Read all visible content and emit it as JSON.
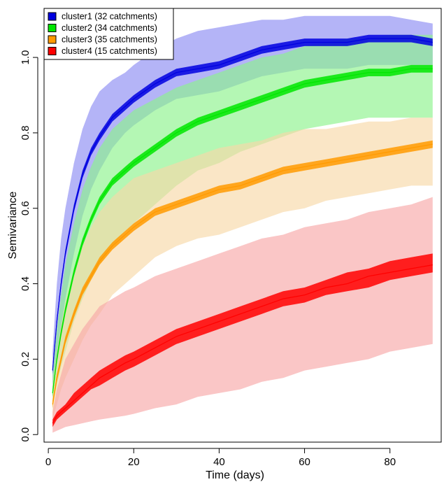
{
  "chart_data": {
    "type": "area",
    "xlabel": "Time (days)",
    "ylabel": "Semivariance",
    "xlim": [
      -1,
      92
    ],
    "ylim": [
      -0.02,
      1.13
    ],
    "x_ticks": [
      0,
      20,
      40,
      60,
      80
    ],
    "y_ticks": [
      0.0,
      0.2,
      0.4,
      0.6,
      0.8,
      1.0
    ],
    "y_tick_labels": [
      "0.0",
      "0.2",
      "0.4",
      "0.6",
      "0.8",
      "1.0"
    ],
    "grid": false,
    "legend_position": "top-left",
    "x": [
      1,
      2,
      3,
      4,
      6,
      8,
      10,
      12,
      15,
      18,
      20,
      25,
      30,
      35,
      40,
      45,
      50,
      55,
      60,
      65,
      70,
      75,
      80,
      85,
      90
    ],
    "series": [
      {
        "name": "cluster1 (32 catchments)",
        "color": "#0000e0",
        "band_color": "#8c8cf2",
        "mean": [
          0.17,
          0.3,
          0.4,
          0.48,
          0.6,
          0.69,
          0.75,
          0.79,
          0.84,
          0.87,
          0.89,
          0.93,
          0.96,
          0.97,
          0.98,
          1.0,
          1.02,
          1.03,
          1.04,
          1.04,
          1.04,
          1.05,
          1.05,
          1.05,
          1.04
        ],
        "mean_lower": [
          0.16,
          0.29,
          0.39,
          0.47,
          0.59,
          0.68,
          0.74,
          0.78,
          0.83,
          0.86,
          0.88,
          0.92,
          0.95,
          0.96,
          0.97,
          0.99,
          1.01,
          1.02,
          1.03,
          1.03,
          1.03,
          1.04,
          1.04,
          1.04,
          1.03
        ],
        "mean_upper": [
          0.18,
          0.31,
          0.41,
          0.49,
          0.61,
          0.7,
          0.76,
          0.8,
          0.85,
          0.88,
          0.9,
          0.94,
          0.97,
          0.98,
          0.99,
          1.01,
          1.03,
          1.04,
          1.05,
          1.05,
          1.05,
          1.06,
          1.06,
          1.06,
          1.05
        ],
        "lower": [
          0.12,
          0.2,
          0.28,
          0.36,
          0.48,
          0.58,
          0.65,
          0.7,
          0.76,
          0.8,
          0.82,
          0.86,
          0.89,
          0.9,
          0.91,
          0.93,
          0.95,
          0.96,
          0.97,
          0.97,
          0.97,
          0.98,
          0.98,
          0.98,
          0.98
        ],
        "upper": [
          0.22,
          0.4,
          0.52,
          0.6,
          0.72,
          0.81,
          0.87,
          0.91,
          0.94,
          0.96,
          0.98,
          1.02,
          1.05,
          1.07,
          1.08,
          1.09,
          1.1,
          1.1,
          1.11,
          1.11,
          1.11,
          1.11,
          1.11,
          1.1,
          1.09
        ]
      },
      {
        "name": "cluster2 (34 catchments)",
        "color": "#00e600",
        "band_color": "#8cf28c",
        "mean": [
          0.11,
          0.2,
          0.27,
          0.33,
          0.43,
          0.51,
          0.57,
          0.62,
          0.67,
          0.7,
          0.72,
          0.76,
          0.8,
          0.83,
          0.85,
          0.87,
          0.89,
          0.91,
          0.93,
          0.94,
          0.95,
          0.96,
          0.96,
          0.97,
          0.97
        ],
        "mean_lower": [
          0.1,
          0.19,
          0.26,
          0.32,
          0.42,
          0.5,
          0.56,
          0.61,
          0.66,
          0.69,
          0.71,
          0.75,
          0.79,
          0.82,
          0.84,
          0.86,
          0.88,
          0.9,
          0.92,
          0.93,
          0.94,
          0.95,
          0.95,
          0.96,
          0.96
        ],
        "mean_upper": [
          0.12,
          0.21,
          0.28,
          0.34,
          0.44,
          0.52,
          0.58,
          0.63,
          0.68,
          0.71,
          0.73,
          0.77,
          0.81,
          0.84,
          0.86,
          0.88,
          0.9,
          0.92,
          0.94,
          0.95,
          0.96,
          0.97,
          0.97,
          0.98,
          0.98
        ],
        "lower": [
          0.08,
          0.13,
          0.18,
          0.22,
          0.3,
          0.36,
          0.41,
          0.45,
          0.5,
          0.54,
          0.56,
          0.61,
          0.66,
          0.7,
          0.72,
          0.75,
          0.77,
          0.79,
          0.81,
          0.82,
          0.83,
          0.84,
          0.84,
          0.84,
          0.84
        ],
        "upper": [
          0.16,
          0.28,
          0.37,
          0.45,
          0.56,
          0.65,
          0.71,
          0.76,
          0.81,
          0.84,
          0.86,
          0.89,
          0.92,
          0.94,
          0.96,
          0.98,
          1.0,
          1.01,
          1.03,
          1.04,
          1.05,
          1.05,
          1.06,
          1.06,
          1.06
        ]
      },
      {
        "name": "cluster3 (35 catchments)",
        "color": "#ff9a00",
        "band_color": "#f7d9a8",
        "mean": [
          0.08,
          0.15,
          0.2,
          0.25,
          0.32,
          0.38,
          0.42,
          0.46,
          0.5,
          0.53,
          0.55,
          0.59,
          0.61,
          0.63,
          0.65,
          0.66,
          0.68,
          0.7,
          0.71,
          0.72,
          0.73,
          0.74,
          0.75,
          0.76,
          0.77
        ],
        "mean_lower": [
          0.07,
          0.14,
          0.19,
          0.24,
          0.31,
          0.37,
          0.41,
          0.45,
          0.49,
          0.52,
          0.54,
          0.58,
          0.6,
          0.62,
          0.64,
          0.65,
          0.67,
          0.69,
          0.7,
          0.71,
          0.72,
          0.73,
          0.74,
          0.75,
          0.76
        ],
        "mean_upper": [
          0.09,
          0.16,
          0.21,
          0.26,
          0.33,
          0.39,
          0.43,
          0.47,
          0.51,
          0.54,
          0.56,
          0.6,
          0.62,
          0.64,
          0.66,
          0.67,
          0.69,
          0.71,
          0.72,
          0.73,
          0.74,
          0.75,
          0.76,
          0.77,
          0.78
        ],
        "lower": [
          0.04,
          0.08,
          0.12,
          0.15,
          0.2,
          0.25,
          0.29,
          0.32,
          0.37,
          0.4,
          0.42,
          0.47,
          0.5,
          0.52,
          0.53,
          0.55,
          0.57,
          0.59,
          0.6,
          0.62,
          0.63,
          0.64,
          0.65,
          0.66,
          0.66
        ],
        "upper": [
          0.13,
          0.22,
          0.29,
          0.35,
          0.44,
          0.5,
          0.55,
          0.59,
          0.63,
          0.66,
          0.68,
          0.7,
          0.72,
          0.74,
          0.76,
          0.77,
          0.78,
          0.8,
          0.81,
          0.81,
          0.82,
          0.83,
          0.83,
          0.84,
          0.84
        ]
      },
      {
        "name": "cluster4 (15 catchments)",
        "color": "#ff0000",
        "band_color": "#f7a8a8",
        "mean": [
          0.03,
          0.05,
          0.06,
          0.07,
          0.09,
          0.11,
          0.13,
          0.15,
          0.17,
          0.19,
          0.2,
          0.23,
          0.26,
          0.28,
          0.3,
          0.32,
          0.34,
          0.36,
          0.37,
          0.39,
          0.4,
          0.42,
          0.43,
          0.44,
          0.45
        ],
        "mean_lower": [
          0.02,
          0.04,
          0.05,
          0.06,
          0.08,
          0.1,
          0.12,
          0.13,
          0.15,
          0.17,
          0.18,
          0.21,
          0.24,
          0.26,
          0.28,
          0.3,
          0.32,
          0.34,
          0.35,
          0.37,
          0.38,
          0.39,
          0.41,
          0.42,
          0.43
        ],
        "mean_upper": [
          0.04,
          0.06,
          0.07,
          0.08,
          0.11,
          0.13,
          0.15,
          0.17,
          0.19,
          0.21,
          0.22,
          0.25,
          0.28,
          0.3,
          0.32,
          0.34,
          0.36,
          0.38,
          0.39,
          0.41,
          0.43,
          0.44,
          0.46,
          0.47,
          0.48
        ],
        "lower": [
          0.005,
          0.01,
          0.015,
          0.02,
          0.025,
          0.03,
          0.035,
          0.04,
          0.045,
          0.05,
          0.055,
          0.07,
          0.08,
          0.1,
          0.11,
          0.12,
          0.14,
          0.15,
          0.17,
          0.18,
          0.19,
          0.2,
          0.22,
          0.23,
          0.24
        ],
        "upper": [
          0.06,
          0.12,
          0.16,
          0.2,
          0.24,
          0.28,
          0.31,
          0.34,
          0.36,
          0.38,
          0.39,
          0.42,
          0.44,
          0.46,
          0.48,
          0.5,
          0.52,
          0.53,
          0.55,
          0.56,
          0.57,
          0.59,
          0.6,
          0.61,
          0.63
        ]
      }
    ]
  }
}
